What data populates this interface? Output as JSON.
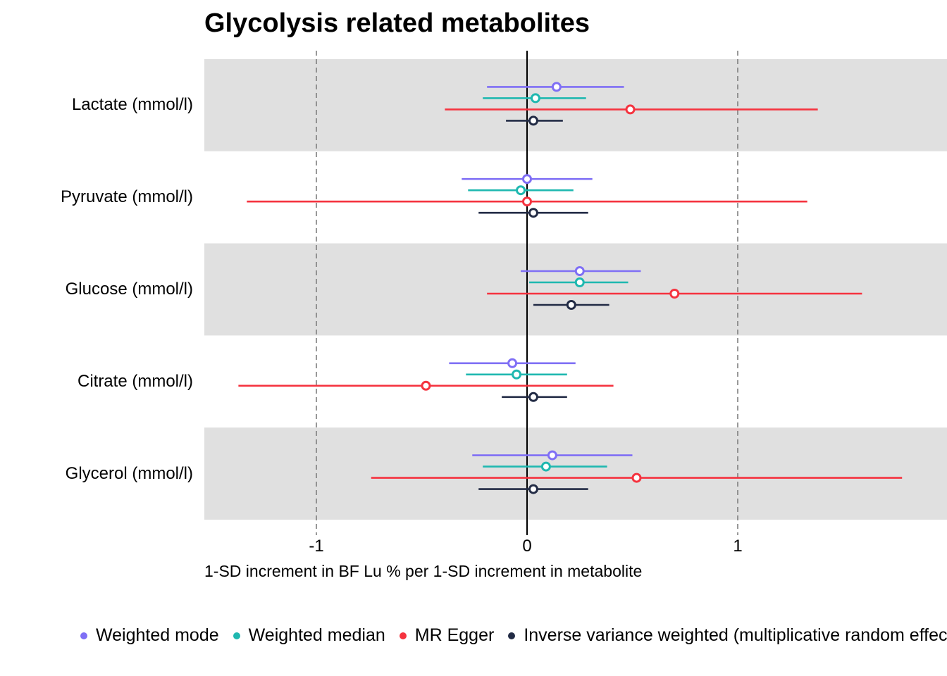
{
  "chart_data": {
    "type": "forest",
    "title": "Glycolysis related metabolites",
    "xlabel": "1-SD increment in BF Lu % per 1-SD increment in metabolite",
    "xlim": [
      -1.5,
      1.95
    ],
    "xticks": [
      -1,
      0,
      1
    ],
    "xtick_labels": [
      "-1",
      "0",
      "1"
    ],
    "reference_lines": {
      "solid": 0,
      "dashed": [
        -1,
        1
      ]
    },
    "legend_position": "bottom",
    "categories": [
      "Lactate (mmol/l)",
      "Pyruvate (mmol/l)",
      "Glucose (mmol/l)",
      "Citrate (mmol/l)",
      "Glycerol (mmol/l)"
    ],
    "series": [
      {
        "name": "Weighted mode",
        "color": "#7F6FF5",
        "estimate": [
          0.14,
          0.0,
          0.25,
          -0.07,
          0.12
        ],
        "lower": [
          -0.19,
          -0.31,
          -0.03,
          -0.37,
          -0.26
        ],
        "upper": [
          0.46,
          0.31,
          0.54,
          0.23,
          0.5
        ]
      },
      {
        "name": "Weighted median",
        "color": "#1FB8B0",
        "estimate": [
          0.04,
          -0.03,
          0.25,
          -0.05,
          0.09
        ],
        "lower": [
          -0.21,
          -0.28,
          0.01,
          -0.29,
          -0.21
        ],
        "upper": [
          0.28,
          0.22,
          0.48,
          0.19,
          0.38
        ]
      },
      {
        "name": "MR Egger",
        "color": "#F5333F",
        "estimate": [
          0.49,
          0.0,
          0.7,
          -0.48,
          0.52
        ],
        "lower": [
          -0.39,
          -1.33,
          -0.19,
          -1.37,
          -0.74
        ],
        "upper": [
          1.38,
          1.33,
          1.59,
          0.41,
          1.78
        ]
      },
      {
        "name": "Inverse variance weighted (multiplicative random effects)",
        "color": "#222B45",
        "estimate": [
          0.03,
          0.03,
          0.21,
          0.03,
          0.03
        ],
        "lower": [
          -0.1,
          -0.23,
          0.03,
          -0.12,
          -0.23
        ],
        "upper": [
          0.17,
          0.29,
          0.39,
          0.19,
          0.29
        ]
      }
    ]
  },
  "colors": {
    "band": "#E0E0E0",
    "dashed_line": "#7F7F7F",
    "zero_line": "#000000"
  }
}
